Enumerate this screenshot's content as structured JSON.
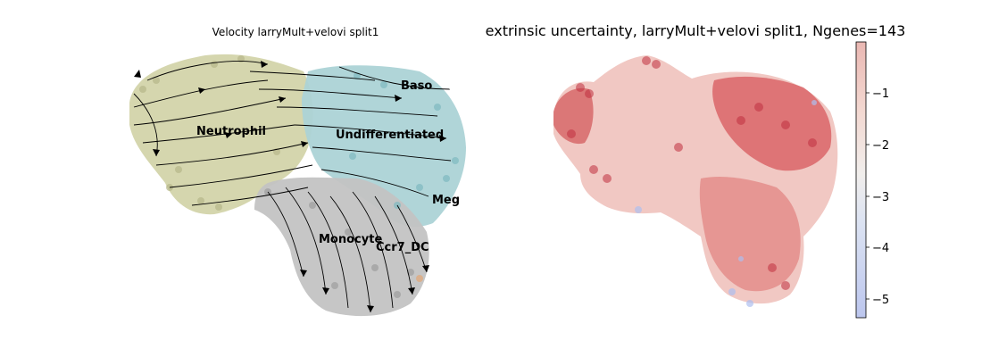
{
  "chart_data": [
    {
      "type": "scatter",
      "subtype": "velocity-streamplot",
      "title": "Velocity larryMult+velovi split1",
      "clusters": [
        {
          "name": "Baso",
          "color": "#8fc4cb"
        },
        {
          "name": "Undifferentiated",
          "color": "#8fc4cb"
        },
        {
          "name": "Neutrophil",
          "color": "#c1c291"
        },
        {
          "name": "Meg",
          "color": "#8fc4cb"
        },
        {
          "name": "Monocyte",
          "color": "#a6a6a6"
        },
        {
          "name": "Ccr7_DC",
          "color": "#a6a6a6"
        }
      ],
      "arrows": "black streamlines",
      "axes_visible": false
    },
    {
      "type": "scatter",
      "title": "extrinsic uncertainty, larryMult+velovi split1, Ngenes=143",
      "colorbar": {
        "cmap": "coolwarm",
        "ticks": [
          "−1",
          "−2",
          "−3",
          "−4",
          "−5"
        ],
        "range": [
          -5.3,
          -0.1
        ]
      },
      "dominant_point_color": "#c84c4c",
      "axes_visible": false
    }
  ]
}
